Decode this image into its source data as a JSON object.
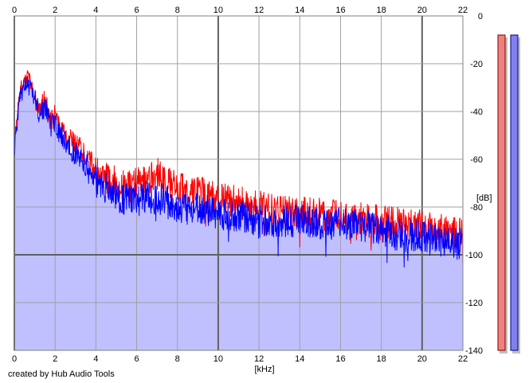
{
  "chart_data": {
    "type": "area",
    "title": "",
    "xlabel": "[kHz]",
    "ylabel": "[dB]",
    "xlim": [
      0,
      22
    ],
    "ylim": [
      -140,
      0
    ],
    "x_ticks": [
      0,
      2,
      4,
      6,
      8,
      10,
      12,
      14,
      16,
      18,
      20,
      22
    ],
    "y_ticks": [
      0,
      -20,
      -40,
      -60,
      -80,
      -100,
      -120,
      -140
    ],
    "grid": true,
    "series": [
      {
        "color": "#ff0000",
        "x": [
          0.0,
          0.3,
          0.5,
          0.7,
          0.9,
          1.2,
          1.5,
          1.8,
          2.0,
          2.5,
          3.0,
          3.5,
          4.0,
          4.5,
          5.0,
          5.5,
          6.0,
          6.5,
          7.0,
          7.5,
          8.0,
          9.0,
          10.0,
          11.0,
          12.0,
          13.0,
          14.0,
          15.0,
          16.0,
          17.0,
          18.0,
          19.0,
          20.0,
          21.0,
          22.0
        ],
        "y": [
          -52,
          -30,
          -27,
          -25,
          -31,
          -38,
          -36,
          -44,
          -42,
          -50,
          -54,
          -58,
          -64,
          -68,
          -70,
          -72,
          -70,
          -68,
          -66,
          -70,
          -72,
          -74,
          -76,
          -78,
          -80,
          -82,
          -82,
          -83,
          -84,
          -85,
          -86,
          -87,
          -88,
          -90,
          -92
        ]
      },
      {
        "color": "#0000ff",
        "x": [
          0.0,
          0.3,
          0.5,
          0.7,
          0.9,
          1.2,
          1.5,
          1.8,
          2.0,
          2.5,
          3.0,
          3.5,
          4.0,
          4.5,
          5.0,
          5.5,
          6.0,
          6.5,
          7.0,
          7.5,
          8.0,
          9.0,
          10.0,
          11.0,
          12.0,
          13.0,
          14.0,
          15.0,
          16.0,
          17.0,
          18.0,
          19.0,
          20.0,
          21.0,
          22.0
        ],
        "y": [
          -55,
          -32,
          -29,
          -27,
          -33,
          -40,
          -38,
          -46,
          -45,
          -53,
          -58,
          -62,
          -68,
          -72,
          -75,
          -77,
          -77,
          -76,
          -76,
          -78,
          -80,
          -81,
          -83,
          -84,
          -85,
          -86,
          -86,
          -87,
          -87,
          -88,
          -90,
          -92,
          -92,
          -94,
          -96
        ]
      }
    ],
    "fill_color": "#c0c0ff",
    "meters": [
      {
        "color": "#f08080",
        "border": "#800000"
      },
      {
        "color": "#8080f0",
        "border": "#000080"
      }
    ]
  },
  "credit": "created by Hub Audio Tools"
}
